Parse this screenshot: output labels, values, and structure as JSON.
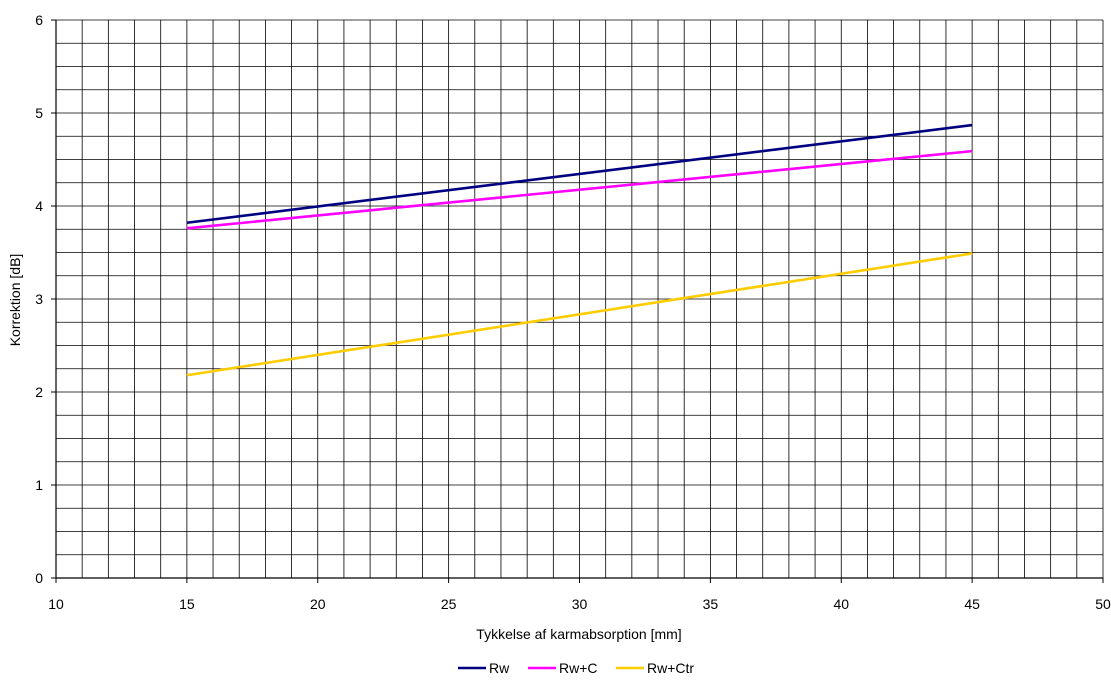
{
  "chart_data": {
    "type": "line",
    "title": "",
    "xlabel": "Tykkelse af karmabsorption [mm]",
    "ylabel": "Korrektion [dB]",
    "xlim": [
      10,
      50
    ],
    "ylim": [
      0,
      6
    ],
    "x_ticks": [
      "10",
      "15",
      "20",
      "25",
      "30",
      "35",
      "40",
      "45",
      "50"
    ],
    "y_ticks": [
      "0",
      "1",
      "2",
      "3",
      "4",
      "5",
      "6"
    ],
    "x_minor_step": 1,
    "y_minor_step": 0.25,
    "grid": true,
    "legend_position": "bottom-center",
    "series": [
      {
        "name": "Rw",
        "color": "#000080",
        "x": [
          15,
          45
        ],
        "y": [
          3.82,
          4.87
        ]
      },
      {
        "name": "Rw+C",
        "color": "#ff00ff",
        "x": [
          15,
          45
        ],
        "y": [
          3.76,
          4.59
        ]
      },
      {
        "name": "Rw+Ctr",
        "color": "#ffcc00",
        "x": [
          15,
          45
        ],
        "y": [
          2.18,
          3.49
        ]
      }
    ]
  }
}
